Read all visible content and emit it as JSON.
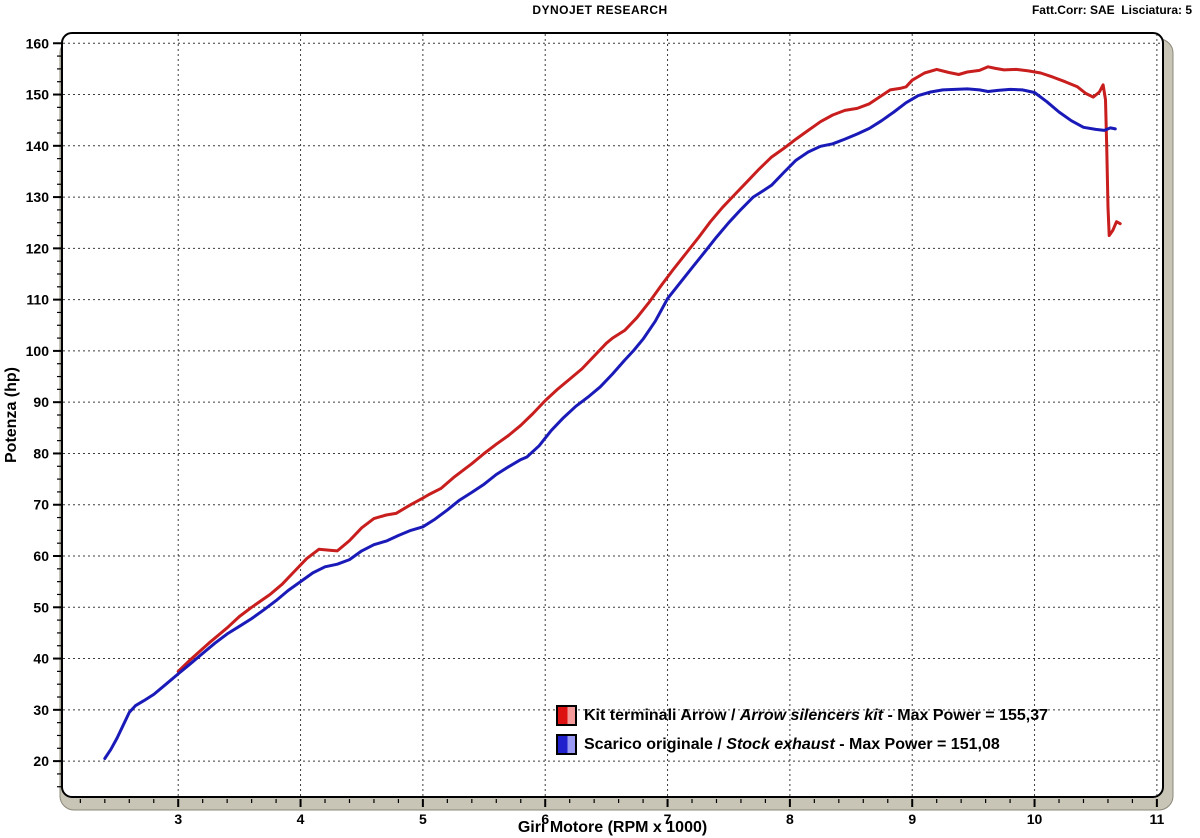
{
  "header": {
    "title": "DYNOJET RESEARCH",
    "correction": "Fatt.Corr: SAE  Lisciatura: 5"
  },
  "legend": {
    "rows": [
      {
        "prefix": "Kit terminali Arrow / ",
        "italic": "Arrow silencers kit",
        "suffix": " - Max Power = 155,37"
      },
      {
        "prefix": "Scarico originale / ",
        "italic": "Stock exhaust",
        "suffix": " - Max Power = 151,08"
      }
    ]
  },
  "chart_data": {
    "type": "line",
    "title": "DYNOJET RESEARCH",
    "xlabel": "Giri Motore (RPM x 1000)",
    "ylabel": "Potenza (hp)",
    "xlim": [
      2.05,
      11.05
    ],
    "ylim": [
      13,
      162
    ],
    "x_ticks": [
      3,
      4,
      5,
      6,
      7,
      8,
      9,
      10,
      11
    ],
    "y_ticks": [
      20,
      30,
      40,
      50,
      60,
      70,
      80,
      90,
      100,
      110,
      120,
      130,
      140,
      150,
      160
    ],
    "x_minor_step": 0.2,
    "y_minor_step": 2.5,
    "grid": "dashed",
    "legend_position": "bottom-center-inside",
    "colors": {
      "grid": "#3c3c3c",
      "frame": "#000000",
      "band": "#c8c5b6",
      "band_edge": "#8a8779",
      "plot_bg": "#ffffff"
    },
    "series": [
      {
        "name": "arrow-silencers-kit",
        "label": "Kit terminali Arrow / Arrow silencers kit",
        "max_power": 155.37,
        "color": "#c81e1e",
        "swatch_main": "#dd1111",
        "swatch_light": "#f49a9a",
        "points": [
          [
            3.0,
            37.5
          ],
          [
            3.1,
            39.8
          ],
          [
            3.25,
            43
          ],
          [
            3.4,
            46
          ],
          [
            3.5,
            48.2
          ],
          [
            3.6,
            50
          ],
          [
            3.75,
            52.5
          ],
          [
            3.85,
            54.5
          ],
          [
            3.95,
            57
          ],
          [
            4.05,
            59.5
          ],
          [
            4.15,
            61.3
          ],
          [
            4.25,
            61.1
          ],
          [
            4.3,
            61
          ],
          [
            4.4,
            63
          ],
          [
            4.5,
            65.5
          ],
          [
            4.6,
            67.3
          ],
          [
            4.7,
            68
          ],
          [
            4.78,
            68.3
          ],
          [
            4.9,
            70
          ],
          [
            5.0,
            71.3
          ],
          [
            5.05,
            72
          ],
          [
            5.15,
            73.2
          ],
          [
            5.25,
            75.3
          ],
          [
            5.4,
            78
          ],
          [
            5.5,
            80
          ],
          [
            5.6,
            81.8
          ],
          [
            5.7,
            83.5
          ],
          [
            5.8,
            85.5
          ],
          [
            5.9,
            87.8
          ],
          [
            6.0,
            90.3
          ],
          [
            6.1,
            92.5
          ],
          [
            6.2,
            94.5
          ],
          [
            6.3,
            96.5
          ],
          [
            6.4,
            99
          ],
          [
            6.5,
            101.5
          ],
          [
            6.55,
            102.5
          ],
          [
            6.65,
            104
          ],
          [
            6.75,
            106.5
          ],
          [
            6.85,
            109.5
          ],
          [
            6.95,
            112.8
          ],
          [
            7.05,
            116
          ],
          [
            7.15,
            119
          ],
          [
            7.25,
            122
          ],
          [
            7.35,
            125.2
          ],
          [
            7.45,
            128
          ],
          [
            7.55,
            130.5
          ],
          [
            7.65,
            133
          ],
          [
            7.75,
            135.5
          ],
          [
            7.85,
            137.8
          ],
          [
            7.95,
            139.5
          ],
          [
            8.05,
            141.3
          ],
          [
            8.15,
            143
          ],
          [
            8.25,
            144.7
          ],
          [
            8.35,
            146
          ],
          [
            8.45,
            146.9
          ],
          [
            8.55,
            147.3
          ],
          [
            8.65,
            148.2
          ],
          [
            8.75,
            149.8
          ],
          [
            8.82,
            150.9
          ],
          [
            8.9,
            151.2
          ],
          [
            8.95,
            151.5
          ],
          [
            9.0,
            152.8
          ],
          [
            9.1,
            154.2
          ],
          [
            9.2,
            154.9
          ],
          [
            9.3,
            154.3
          ],
          [
            9.38,
            153.9
          ],
          [
            9.45,
            154.4
          ],
          [
            9.55,
            154.7
          ],
          [
            9.62,
            155.4
          ],
          [
            9.68,
            155.1
          ],
          [
            9.75,
            154.8
          ],
          [
            9.85,
            154.9
          ],
          [
            9.95,
            154.6
          ],
          [
            10.05,
            154.2
          ],
          [
            10.15,
            153.4
          ],
          [
            10.25,
            152.5
          ],
          [
            10.35,
            151.5
          ],
          [
            10.42,
            150.2
          ],
          [
            10.48,
            149.5
          ],
          [
            10.53,
            150.5
          ],
          [
            10.56,
            151.9
          ],
          [
            10.58,
            149
          ],
          [
            10.59,
            140
          ],
          [
            10.6,
            128
          ],
          [
            10.61,
            122.5
          ],
          [
            10.64,
            123.5
          ],
          [
            10.67,
            125.2
          ],
          [
            10.7,
            124.8
          ]
        ]
      },
      {
        "name": "stock-exhaust",
        "label": "Scarico originale / Stock exhaust",
        "max_power": 151.08,
        "color": "#1a1ab8",
        "swatch_main": "#2020cc",
        "swatch_light": "#9a9af4",
        "points": [
          [
            2.4,
            20.5
          ],
          [
            2.45,
            22.3
          ],
          [
            2.5,
            24.5
          ],
          [
            2.55,
            27
          ],
          [
            2.6,
            29.5
          ],
          [
            2.65,
            30.8
          ],
          [
            2.72,
            31.8
          ],
          [
            2.8,
            33
          ],
          [
            2.9,
            35
          ],
          [
            3.0,
            37
          ],
          [
            3.1,
            39
          ],
          [
            3.2,
            41
          ],
          [
            3.3,
            43
          ],
          [
            3.4,
            44.8
          ],
          [
            3.5,
            46.3
          ],
          [
            3.6,
            47.8
          ],
          [
            3.7,
            49.5
          ],
          [
            3.8,
            51.3
          ],
          [
            3.9,
            53.3
          ],
          [
            4.0,
            55
          ],
          [
            4.1,
            56.7
          ],
          [
            4.2,
            57.9
          ],
          [
            4.3,
            58.4
          ],
          [
            4.4,
            59.3
          ],
          [
            4.5,
            61
          ],
          [
            4.6,
            62.2
          ],
          [
            4.7,
            62.9
          ],
          [
            4.8,
            64
          ],
          [
            4.9,
            65
          ],
          [
            5.0,
            65.7
          ],
          [
            5.1,
            67.2
          ],
          [
            5.2,
            69
          ],
          [
            5.3,
            70.9
          ],
          [
            5.4,
            72.4
          ],
          [
            5.5,
            74
          ],
          [
            5.6,
            75.9
          ],
          [
            5.7,
            77.4
          ],
          [
            5.8,
            78.8
          ],
          [
            5.85,
            79.3
          ],
          [
            5.95,
            81.5
          ],
          [
            6.05,
            84.5
          ],
          [
            6.15,
            87
          ],
          [
            6.25,
            89.2
          ],
          [
            6.35,
            91
          ],
          [
            6.45,
            93
          ],
          [
            6.55,
            95.5
          ],
          [
            6.65,
            98.2
          ],
          [
            6.72,
            100
          ],
          [
            6.8,
            102.3
          ],
          [
            6.9,
            105.8
          ],
          [
            7.0,
            110.2
          ],
          [
            7.1,
            113.2
          ],
          [
            7.2,
            116.2
          ],
          [
            7.3,
            119.2
          ],
          [
            7.4,
            122.2
          ],
          [
            7.5,
            125
          ],
          [
            7.6,
            127.6
          ],
          [
            7.7,
            130
          ],
          [
            7.78,
            131.2
          ],
          [
            7.85,
            132.3
          ],
          [
            7.95,
            134.8
          ],
          [
            8.05,
            137.2
          ],
          [
            8.15,
            138.8
          ],
          [
            8.25,
            139.9
          ],
          [
            8.35,
            140.4
          ],
          [
            8.45,
            141.3
          ],
          [
            8.55,
            142.3
          ],
          [
            8.65,
            143.4
          ],
          [
            8.75,
            144.9
          ],
          [
            8.85,
            146.6
          ],
          [
            8.95,
            148.4
          ],
          [
            9.05,
            149.8
          ],
          [
            9.15,
            150.5
          ],
          [
            9.25,
            150.9
          ],
          [
            9.35,
            151.0
          ],
          [
            9.45,
            151.1
          ],
          [
            9.55,
            150.9
          ],
          [
            9.62,
            150.6
          ],
          [
            9.7,
            150.8
          ],
          [
            9.8,
            151.0
          ],
          [
            9.9,
            150.9
          ],
          [
            10.0,
            150.4
          ],
          [
            10.1,
            148.6
          ],
          [
            10.2,
            146.6
          ],
          [
            10.3,
            144.9
          ],
          [
            10.4,
            143.6
          ],
          [
            10.5,
            143.2
          ],
          [
            10.57,
            143.0
          ],
          [
            10.62,
            143.5
          ],
          [
            10.66,
            143.3
          ]
        ]
      }
    ]
  }
}
